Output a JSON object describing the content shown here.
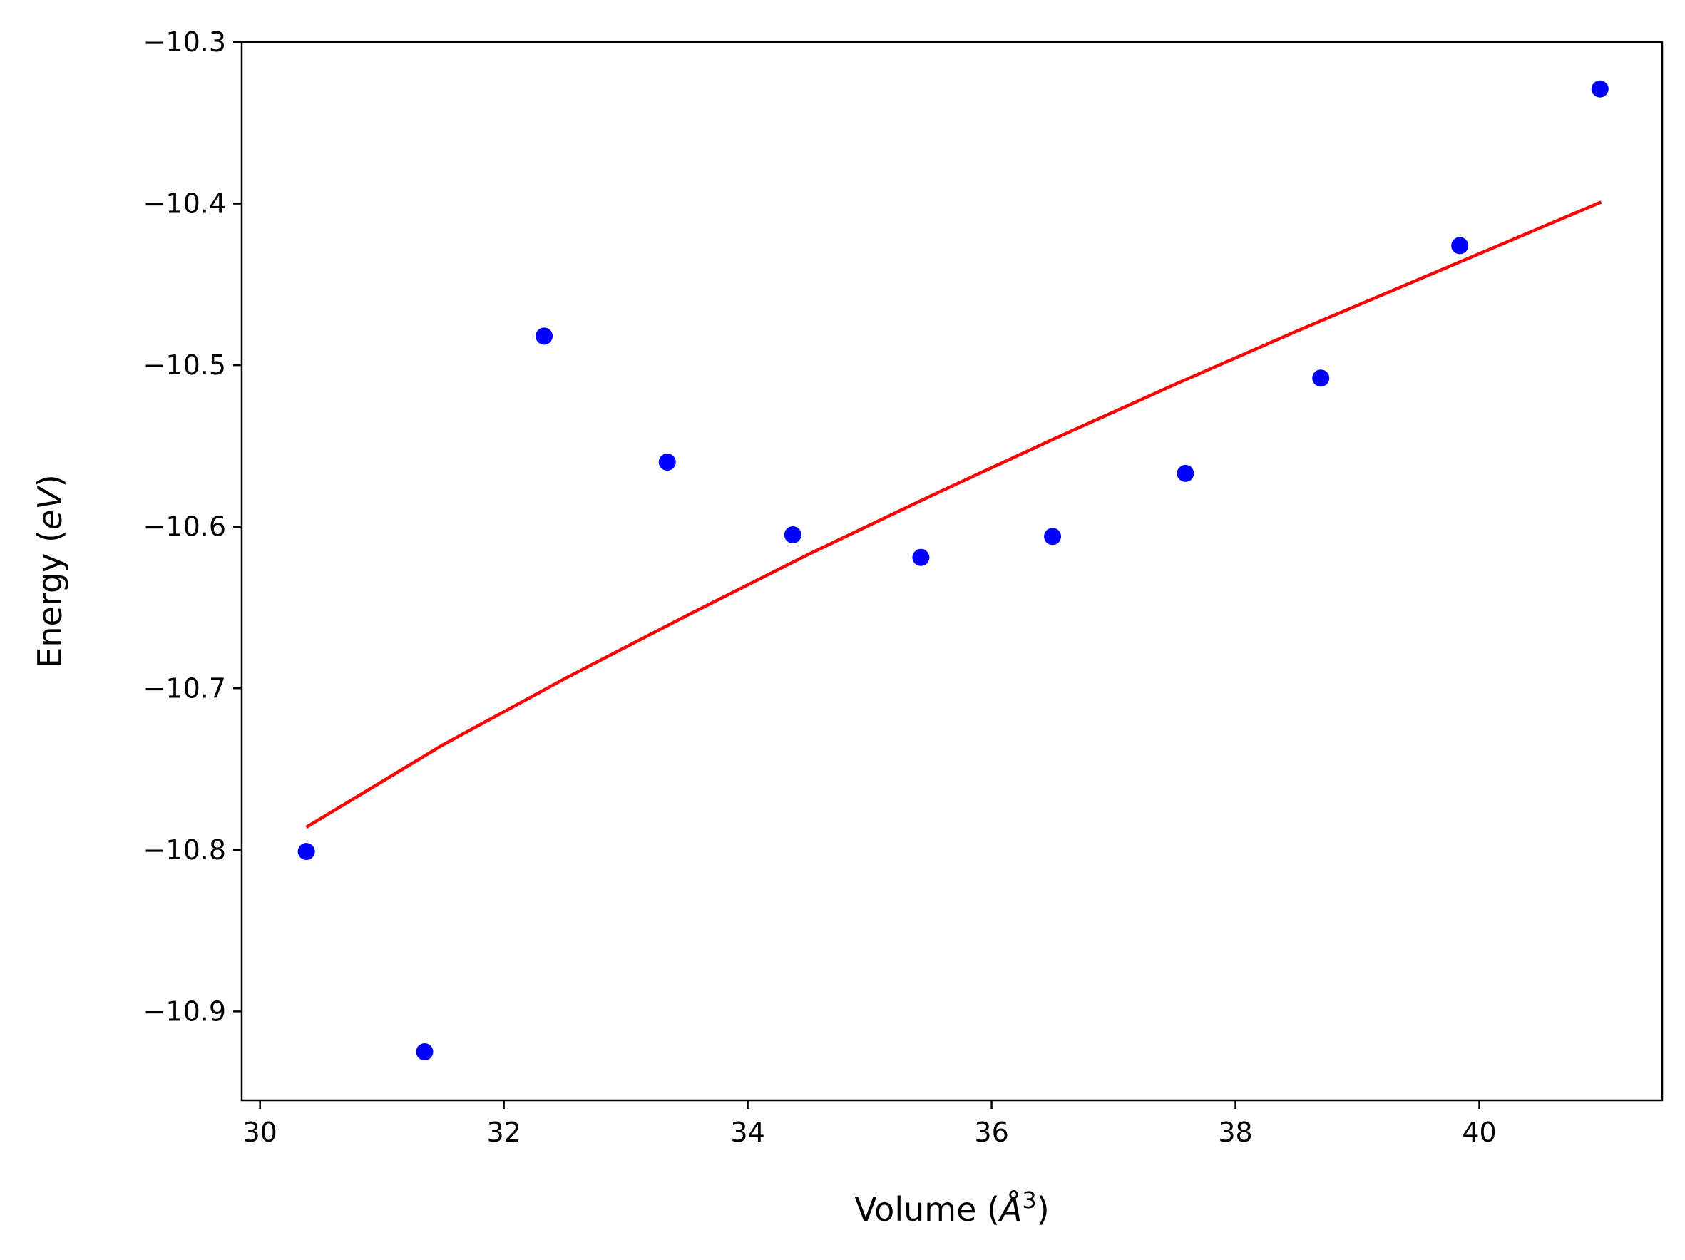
{
  "chart_data": {
    "type": "scatter",
    "title": "",
    "xlabel": {
      "prefix": "Volume (",
      "symbol": "Å",
      "exponent": "3",
      "suffix": ")"
    },
    "ylabel": {
      "prefix": "Energy (",
      "symbol": "eV",
      "suffix": ")"
    },
    "xlim": [
      29.85,
      41.5
    ],
    "ylim": [
      -10.955,
      -10.3
    ],
    "xticks": [
      30,
      32,
      34,
      36,
      38,
      40
    ],
    "xtick_labels": [
      "30",
      "32",
      "34",
      "36",
      "38",
      "40"
    ],
    "yticks": [
      -10.3,
      -10.4,
      -10.5,
      -10.6,
      -10.7,
      -10.8,
      -10.9
    ],
    "ytick_labels": [
      "−10.3",
      "−10.4",
      "−10.5",
      "−10.6",
      "−10.7",
      "−10.8",
      "−10.9"
    ],
    "grid": false,
    "series": [
      {
        "kind": "points",
        "color": "#0000ff",
        "x": [
          30.38,
          31.35,
          32.33,
          33.34,
          34.37,
          35.42,
          36.5,
          37.59,
          38.7,
          39.84,
          40.99
        ],
        "y": [
          -10.801,
          -10.925,
          -10.482,
          -10.56,
          -10.605,
          -10.619,
          -10.606,
          -10.567,
          -10.508,
          -10.426,
          -10.329
        ]
      },
      {
        "kind": "line",
        "color": "#ff0000",
        "x": [
          30.38,
          31.5,
          32.5,
          33.5,
          34.5,
          35.5,
          36.5,
          37.5,
          38.5,
          39.5,
          41.0
        ],
        "y": [
          -10.786,
          -10.735,
          -10.694,
          -10.655,
          -10.617,
          -10.581,
          -10.546,
          -10.512,
          -10.479,
          -10.447,
          -10.399
        ]
      }
    ]
  }
}
